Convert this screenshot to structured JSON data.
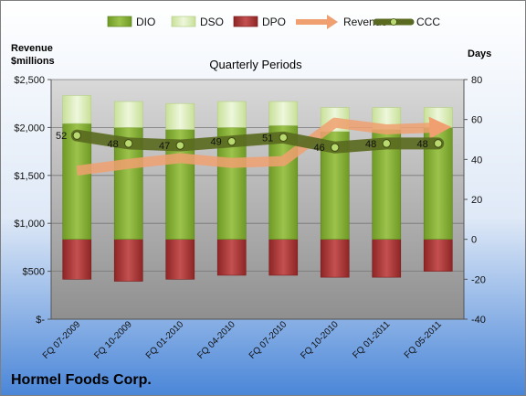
{
  "chart_data": {
    "type": "bar",
    "subtitle": "Quarterly Periods",
    "company": "Hormel Foods Corp.",
    "left_axis_title": [
      "Revenue",
      "$millions"
    ],
    "right_axis_title": "Days",
    "categories": [
      "FQ 07-2009",
      "FQ 10-2009",
      "FQ 01-2010",
      "FQ 04-2010",
      "FQ 07-2010",
      "FQ 10-2010",
      "FQ 01-2011",
      "FQ 05-2011"
    ],
    "left_axis": {
      "ylim": [
        0,
        2500
      ],
      "ticks": [
        0,
        500,
        1000,
        1500,
        2000,
        2500
      ],
      "tick_labels": [
        "$-",
        "$500",
        "$1,000",
        "$1,500",
        "$2,000",
        "$2,500"
      ]
    },
    "right_axis": {
      "ylim": [
        -40,
        80
      ],
      "ticks": [
        -40,
        -20,
        0,
        20,
        40,
        60,
        80
      ],
      "tick_labels": [
        "-40",
        "-20",
        "0",
        "20",
        "40",
        "60",
        "80"
      ]
    },
    "legend_position": "top",
    "series": [
      {
        "name": "DIO",
        "axis": "right",
        "kind": "stacked-bar",
        "color": "#7fa830",
        "values": [
          58,
          56,
          55,
          56,
          57,
          54,
          55,
          56
        ]
      },
      {
        "name": "DSO",
        "axis": "right",
        "kind": "stacked-bar",
        "color": "#d8ecb0",
        "values": [
          14,
          13,
          13,
          13,
          12,
          12,
          11,
          10
        ]
      },
      {
        "name": "DPO",
        "axis": "right",
        "kind": "bar",
        "color": "#b03a3a",
        "values": [
          -20,
          -21,
          -20,
          -18,
          -18,
          -19,
          -19,
          -16
        ]
      },
      {
        "name": "Revenue",
        "axis": "left",
        "kind": "line",
        "color": "#f0a070",
        "values": [
          1550,
          1620,
          1680,
          1630,
          1650,
          2050,
          1980,
          2000
        ]
      },
      {
        "name": "CCC",
        "axis": "right",
        "kind": "line",
        "color": "#5a6a20",
        "values": [
          52,
          48,
          47,
          49,
          51,
          46,
          48,
          48
        ]
      }
    ],
    "data_labels": [
      "52",
      "48",
      "47",
      "49",
      "51",
      "46",
      "48",
      "48"
    ]
  }
}
